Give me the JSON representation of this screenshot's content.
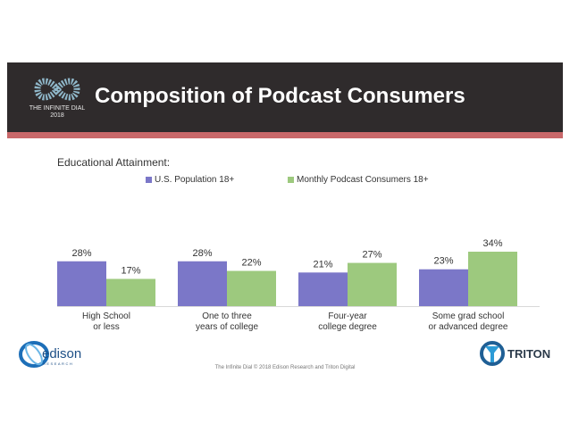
{
  "header": {
    "title": "Composition of Podcast Consumers",
    "logo_line1": "THE INFINITE DIAL",
    "logo_line2": "2018"
  },
  "colors": {
    "series_a": "#7b77c8",
    "series_b": "#9dc97e",
    "header_bg": "#2f2b2c",
    "accent_stripe": "#c9686a"
  },
  "chart_data": {
    "type": "bar",
    "title": "Educational Attainment:",
    "categories": [
      [
        "High School",
        "or less"
      ],
      [
        "One to three",
        "years of college"
      ],
      [
        "Four-year",
        "college degree"
      ],
      [
        "Some grad school",
        "or advanced degree"
      ]
    ],
    "series": [
      {
        "name": "U.S. Population 18+",
        "values": [
          28,
          28,
          21,
          23
        ],
        "labels": [
          "28%",
          "28%",
          "21%",
          "23%"
        ]
      },
      {
        "name": "Monthly Podcast Consumers 18+",
        "values": [
          17,
          22,
          27,
          34
        ],
        "labels": [
          "17%",
          "22%",
          "27%",
          "34%"
        ]
      }
    ],
    "xlabel": "",
    "ylabel": "",
    "ylim": [
      0,
      40
    ],
    "grid": false,
    "legend": "top-center"
  },
  "footer": {
    "text": "The Infinite Dial   © 2018 Edison Research and Triton Digital"
  },
  "logos": {
    "edison_word": "edison",
    "edison_tagline": "RESEARCH",
    "triton_word": "TRITON"
  }
}
